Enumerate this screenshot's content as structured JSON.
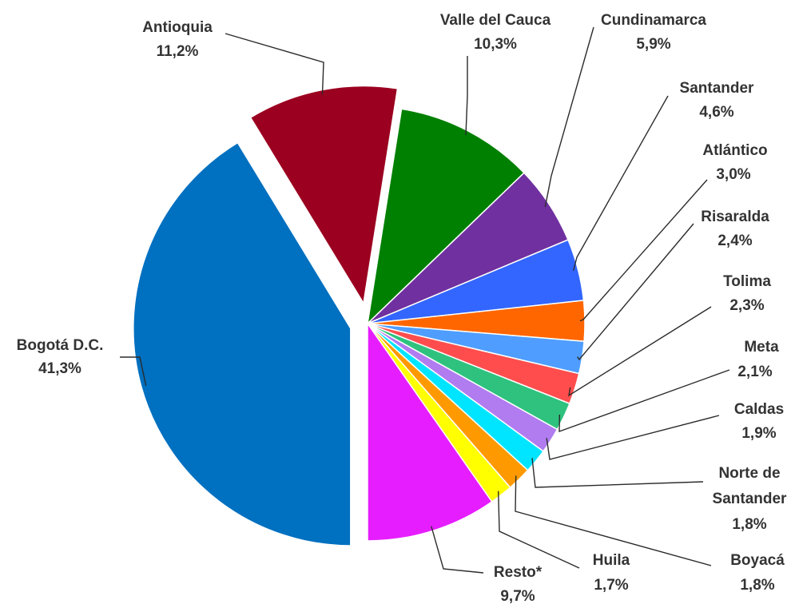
{
  "chart_data": {
    "type": "pie",
    "title": "",
    "categories": [
      "Bogotá D.C.",
      "Antioquia",
      "Valle del Cauca",
      "Cundinamarca",
      "Santander",
      "Atlántico",
      "Risaralda",
      "Tolima",
      "Meta",
      "Caldas",
      "Norte de Santander",
      "Boyacá",
      "Huila",
      "Resto*"
    ],
    "values": [
      41.3,
      11.2,
      10.3,
      5.9,
      4.6,
      3.0,
      2.4,
      2.3,
      2.1,
      1.9,
      1.8,
      1.8,
      1.7,
      9.7
    ],
    "value_labels": [
      "41,3%",
      "11,2%",
      "10,3%",
      "5,9%",
      "4,6%",
      "3,0%",
      "2,4%",
      "2,3%",
      "2,1%",
      "1,9%",
      "1,8%",
      "1,8%",
      "1,7%",
      "9,7%"
    ],
    "colors": [
      "#0070c0",
      "#9b0020",
      "#008000",
      "#7030a0",
      "#3366ff",
      "#ff6600",
      "#4f9dff",
      "#ff4d4d",
      "#2ec27e",
      "#b07cf0",
      "#00e5ff",
      "#ff9900",
      "#ffff00",
      "#e61eff"
    ],
    "exploded": [
      "Bogotá D.C.",
      "Antioquia"
    ],
    "legend": "none",
    "label_style": "outside with leader lines",
    "start_angle_deg": 180,
    "direction": "clockwise"
  }
}
